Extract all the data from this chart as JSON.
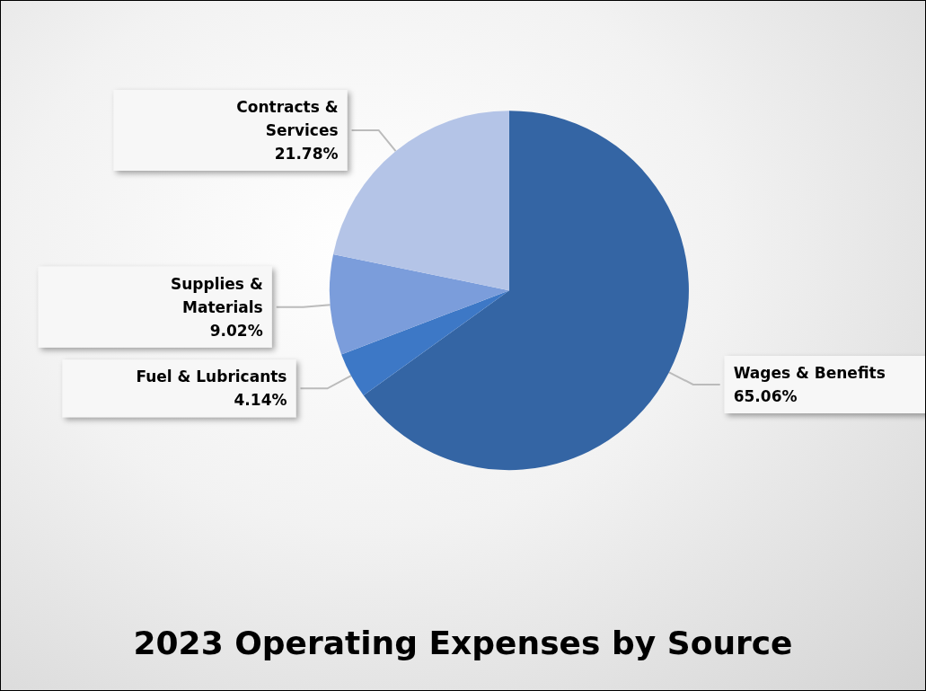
{
  "chart_data": {
    "type": "pie",
    "title": "2023 Operating Expenses by Source",
    "categories": [
      "Wages & Benefits",
      "Fuel & Lubricants",
      "Supplies & Materials",
      "Contracts & Services"
    ],
    "values": [
      65.06,
      4.14,
      9.02,
      21.78
    ],
    "value_labels": [
      "65.06%",
      "4.14%",
      "9.02%",
      "21.78%"
    ],
    "colors": [
      "#3465a4",
      "#3d78c6",
      "#7b9ddb",
      "#b4c4e7"
    ],
    "legend": false
  }
}
